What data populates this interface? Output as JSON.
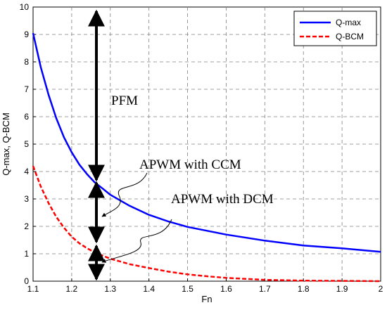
{
  "chart_data": {
    "type": "line",
    "xlabel": "Fn",
    "ylabel": "Q-max, Q-BCM",
    "xlim": [
      1.1,
      2.0
    ],
    "ylim": [
      0,
      10
    ],
    "x_ticks": [
      "1.1",
      "1.2",
      "1.3",
      "1.4",
      "1.5",
      "1.6",
      "1.7",
      "1.8",
      "1.9",
      "2"
    ],
    "y_ticks": [
      "0",
      "1",
      "2",
      "3",
      "4",
      "5",
      "6",
      "7",
      "8",
      "9",
      "10"
    ],
    "grid": true,
    "legend_position": "top-right",
    "series": [
      {
        "name": "Q-max",
        "color": "#0000ff",
        "style": "solid",
        "x": [
          1.1,
          1.12,
          1.14,
          1.16,
          1.18,
          1.2,
          1.22,
          1.24,
          1.26,
          1.28,
          1.3,
          1.35,
          1.4,
          1.45,
          1.5,
          1.6,
          1.7,
          1.8,
          1.9,
          2.0
        ],
        "y": [
          9.05,
          7.8,
          6.8,
          5.95,
          5.25,
          4.7,
          4.25,
          3.9,
          3.6,
          3.38,
          3.15,
          2.75,
          2.42,
          2.18,
          1.98,
          1.7,
          1.48,
          1.3,
          1.2,
          1.07
        ]
      },
      {
        "name": "Q-BCM",
        "color": "#ff0000",
        "style": "dashed",
        "x": [
          1.1,
          1.12,
          1.14,
          1.16,
          1.18,
          1.2,
          1.22,
          1.24,
          1.26,
          1.28,
          1.3,
          1.35,
          1.4,
          1.45,
          1.5,
          1.55,
          1.6,
          1.7,
          1.8,
          1.9,
          2.0
        ],
        "y": [
          4.2,
          3.45,
          2.85,
          2.35,
          1.95,
          1.62,
          1.38,
          1.2,
          1.05,
          0.93,
          0.82,
          0.62,
          0.48,
          0.35,
          0.25,
          0.18,
          0.12,
          0.05,
          0.02,
          0.01,
          0.0
        ]
      }
    ],
    "annotations": {
      "pfm": "PFM",
      "ccm": "APWM with CCM",
      "dcm": "APWM with DCM"
    }
  }
}
